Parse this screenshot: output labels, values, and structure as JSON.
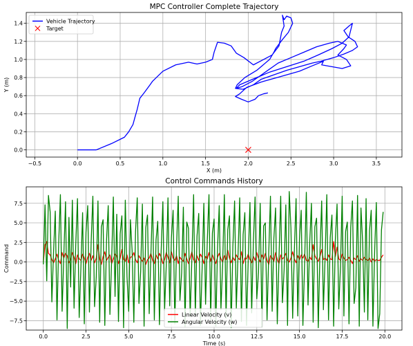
{
  "chart_data": [
    {
      "type": "line",
      "title": "MPC Controller Complete Trajectory",
      "xlabel": "X (m)",
      "ylabel": "Y (m)",
      "xlim": [
        -0.6,
        3.8
      ],
      "ylim": [
        -0.08,
        1.52
      ],
      "xticks": [
        -0.5,
        0.0,
        0.5,
        1.0,
        1.5,
        2.0,
        2.5,
        3.0,
        3.5
      ],
      "yticks": [
        0.0,
        0.2,
        0.4,
        0.6,
        0.8,
        1.0,
        1.2,
        1.4
      ],
      "xtick_labels": [
        "−0.5",
        "0.0",
        "0.5",
        "1.0",
        "1.5",
        "2.0",
        "2.5",
        "3.0",
        "3.5"
      ],
      "ytick_labels": [
        "0.0",
        "0.2",
        "0.4",
        "0.6",
        "0.8",
        "1.0",
        "1.2",
        "1.4"
      ],
      "grid": true,
      "legend_position": "top-left",
      "series": [
        {
          "name": "Vehicle Trajectory",
          "color": "#0000ff",
          "marker": "line",
          "points": [
            [
              0.0,
              0.0
            ],
            [
              0.22,
              0.0
            ],
            [
              0.4,
              0.07
            ],
            [
              0.55,
              0.14
            ],
            [
              0.6,
              0.2
            ],
            [
              0.65,
              0.28
            ],
            [
              0.67,
              0.35
            ],
            [
              0.7,
              0.45
            ],
            [
              0.73,
              0.57
            ],
            [
              0.78,
              0.63
            ],
            [
              0.85,
              0.72
            ],
            [
              0.88,
              0.76
            ],
            [
              1.0,
              0.87
            ],
            [
              1.15,
              0.94
            ],
            [
              1.3,
              0.97
            ],
            [
              1.4,
              0.95
            ],
            [
              1.5,
              0.97
            ],
            [
              1.58,
              1.0
            ],
            [
              1.6,
              1.08
            ],
            [
              1.64,
              1.19
            ],
            [
              1.72,
              1.18
            ],
            [
              1.8,
              1.15
            ],
            [
              1.86,
              1.07
            ],
            [
              1.95,
              1.02
            ],
            [
              2.06,
              0.94
            ],
            [
              2.18,
              1.0
            ],
            [
              2.28,
              1.05
            ],
            [
              2.32,
              1.1
            ],
            [
              2.36,
              1.15
            ],
            [
              2.39,
              1.3
            ],
            [
              2.42,
              1.37
            ],
            [
              2.4,
              1.49
            ],
            [
              2.42,
              1.44
            ],
            [
              2.45,
              1.48
            ],
            [
              2.5,
              1.46
            ],
            [
              2.52,
              1.4
            ],
            [
              2.47,
              1.3
            ],
            [
              2.4,
              1.22
            ],
            [
              2.32,
              1.12
            ],
            [
              2.3,
              1.08
            ],
            [
              2.25,
              1.0
            ],
            [
              2.1,
              0.88
            ],
            [
              1.96,
              0.8
            ],
            [
              1.87,
              0.72
            ],
            [
              1.85,
              0.68
            ],
            [
              1.94,
              0.67
            ],
            [
              2.06,
              0.72
            ],
            [
              2.15,
              0.78
            ],
            [
              2.3,
              0.83
            ],
            [
              2.45,
              0.88
            ],
            [
              2.6,
              0.92
            ],
            [
              2.75,
              0.96
            ],
            [
              2.85,
              0.98
            ],
            [
              3.0,
              1.02
            ],
            [
              3.12,
              1.06
            ],
            [
              3.22,
              1.1
            ],
            [
              3.28,
              1.14
            ],
            [
              3.25,
              1.2
            ],
            [
              3.17,
              1.25
            ],
            [
              3.12,
              1.32
            ],
            [
              3.18,
              1.37
            ],
            [
              3.22,
              1.4
            ],
            [
              3.18,
              1.25
            ],
            [
              3.1,
              1.18
            ],
            [
              2.98,
              1.12
            ],
            [
              2.82,
              1.05
            ],
            [
              2.65,
              0.98
            ],
            [
              2.45,
              0.92
            ],
            [
              2.25,
              0.86
            ],
            [
              2.05,
              0.78
            ],
            [
              1.9,
              0.72
            ],
            [
              1.86,
              0.68
            ],
            [
              1.93,
              0.7
            ],
            [
              2.05,
              0.76
            ],
            [
              2.2,
              0.86
            ],
            [
              2.35,
              0.96
            ],
            [
              2.5,
              1.02
            ],
            [
              2.65,
              1.08
            ],
            [
              2.8,
              1.14
            ],
            [
              2.95,
              1.18
            ],
            [
              3.05,
              1.2
            ],
            [
              3.15,
              1.16
            ],
            [
              3.12,
              1.12
            ],
            [
              3.05,
              1.05
            ],
            [
              3.15,
              1.0
            ],
            [
              3.2,
              0.93
            ],
            [
              3.1,
              0.9
            ],
            [
              2.98,
              0.92
            ],
            [
              2.86,
              0.94
            ],
            [
              2.88,
              0.98
            ],
            [
              2.75,
              0.93
            ],
            [
              2.6,
              0.87
            ],
            [
              2.45,
              0.83
            ],
            [
              2.3,
              0.79
            ],
            [
              2.15,
              0.75
            ],
            [
              1.98,
              0.69
            ],
            [
              1.9,
              0.62
            ],
            [
              1.85,
              0.59
            ],
            [
              1.92,
              0.56
            ],
            [
              2.0,
              0.53
            ],
            [
              2.08,
              0.56
            ],
            [
              2.12,
              0.6
            ],
            [
              2.18,
              0.62
            ],
            [
              2.23,
              0.63
            ]
          ]
        },
        {
          "name": "Target",
          "color": "#ff0000",
          "marker": "x",
          "points": [
            [
              2.0,
              0.0
            ]
          ]
        }
      ]
    },
    {
      "type": "line",
      "title": "Control Commands History",
      "xlabel": "Time (s)",
      "ylabel": "Command",
      "xlim": [
        -1.0,
        21.0
      ],
      "ylim": [
        -8.7,
        9.6
      ],
      "xticks": [
        0.0,
        2.5,
        5.0,
        7.5,
        10.0,
        12.5,
        15.0,
        17.5,
        20.0
      ],
      "yticks": [
        -7.5,
        -5.0,
        -2.5,
        0.0,
        2.5,
        5.0,
        7.5
      ],
      "xtick_labels": [
        "0.0",
        "2.5",
        "5.0",
        "7.5",
        "10.0",
        "12.5",
        "15.0",
        "17.5",
        "20.0"
      ],
      "ytick_labels": [
        "−7.5",
        "−5.0",
        "−2.5",
        "0.0",
        "2.5",
        "5.0",
        "7.5"
      ],
      "grid": true,
      "legend_position": "bottom-center",
      "x_start": 0.0,
      "x_step": 0.1,
      "series": [
        {
          "name": "Linear Velocity (v)",
          "color": "#ff0000",
          "values": [
            0.0,
            2.2,
            2.6,
            1.1,
            0.9,
            0.3,
            -0.1,
            0.4,
            1.0,
            0.2,
            -0.2,
            1.2,
            0.5,
            1.1,
            0.8,
            -0.1,
            0.3,
            1.2,
            0.6,
            -0.2,
            0.9,
            0.4,
            0.2,
            1.0,
            0.5,
            -0.2,
            0.6,
            1.1,
            0.2,
            0.8,
            -0.1,
            0.5,
            2.2,
            0.4,
            -0.3,
            0.7,
            1.3,
            0.2,
            0.6,
            0.9,
            -0.2,
            0.4,
            1.0,
            0.8,
            -0.2,
            0.5,
            1.6,
            0.3,
            0.1,
            0.9,
            -0.1,
            0.6,
            0.7,
            1.2,
            0.3,
            -0.1,
            0.8,
            0.4,
            0.1,
            0.5,
            -0.3,
            0.3,
            0.5,
            1.1,
            0.2,
            -0.2,
            0.9,
            0.4,
            1.1,
            0.6,
            -0.2,
            0.3,
            1.2,
            0.6,
            -0.1,
            1.3,
            0.5,
            0.2,
            0.8,
            -0.2,
            0.6,
            0.3,
            0.1,
            1.1,
            0.4,
            -0.2,
            0.5,
            1.3,
            0.3,
            -0.1,
            0.8,
            0.2,
            1.0,
            0.6,
            -0.2,
            0.7,
            0.4,
            1.2,
            0.1,
            0.9,
            0.3,
            -0.2,
            0.6,
            1.1,
            0.4,
            0.0,
            0.8,
            0.3,
            1.5,
            0.5,
            -0.1,
            0.6,
            0.2,
            0.9,
            0.5,
            0.3,
            1.3,
            -0.2,
            0.5,
            0.4,
            1.0,
            0.3,
            -0.1,
            0.7,
            0.2,
            1.2,
            0.5,
            0.0,
            0.9,
            0.4,
            1.1,
            0.2,
            -0.3,
            0.8,
            0.5,
            0.1,
            1.2,
            0.3,
            -0.2,
            0.9,
            0.4,
            0.6,
            1.1,
            0.2,
            0.0,
            0.5,
            1.3,
            0.4,
            -0.1,
            0.8,
            0.3,
            0.9,
            0.5,
            1.0,
            0.2,
            0.1,
            0.6,
            0.3,
            2.2,
            0.8,
            0.4,
            0.1,
            0.7,
            1.6,
            0.3,
            0.5,
            0.2,
            0.9,
            0.4,
            0.3,
            2.6,
            0.7,
            1.9,
            0.4,
            0.2,
            1.0,
            0.5,
            0.2,
            0.3,
            0.6,
            0.2,
            -0.2,
            0.5,
            0.3,
            0.8,
            0.1,
            0.4,
            0.2,
            0.6,
            0.3,
            0.2,
            0.5,
            0.0,
            0.4,
            0.1,
            0.3,
            0.2,
            0.2,
            0.6,
            0.9
          ]
        },
        {
          "name": "Angular Velocity (w)",
          "color": "#008000",
          "values": [
            -0.3,
            7.3,
            -2.4,
            8.5,
            6.4,
            -5.1,
            1.3,
            6.5,
            -7.4,
            2.4,
            8.6,
            -6.3,
            0.8,
            7.7,
            -8.5,
            5.7,
            -3.2,
            7.9,
            -5.9,
            2.3,
            8.1,
            -7.1,
            -0.8,
            6.3,
            -7.9,
            3.8,
            7.2,
            -6.4,
            2.5,
            8.4,
            -5.7,
            -1.9,
            7.8,
            -7.7,
            4.5,
            5.4,
            -8.1,
            2.7,
            7.2,
            -6.7,
            0.2,
            8.3,
            -4.4,
            6.1,
            -7.6,
            3.6,
            5.9,
            -8.4,
            7.9,
            -1.9,
            -6.3,
            5.4,
            1.4,
            -7.7,
            3.9,
            8.2,
            -5.3,
            -1.2,
            7.4,
            -8.2,
            4.4,
            6.0,
            -6.6,
            0.9,
            8.3,
            -7.4,
            2.8,
            5.2,
            -8.0,
            1.4,
            7.7,
            -6.2,
            -0.3,
            8.2,
            -5.6,
            3.1,
            6.6,
            -7.9,
            1.8,
            8.4,
            -4.9,
            -1.4,
            7.0,
            -8.3,
            5.1,
            4.3,
            -7.0,
            0.6,
            8.6,
            -6.8,
            3.3,
            6.2,
            -8.1,
            -0.7,
            7.5,
            -5.4,
            2.6,
            8.6,
            -7.4,
            3.7,
            5.5,
            -8.2,
            1.7,
            7.2,
            -6.1,
            -0.4,
            8.6,
            -7.2,
            4.1,
            5.9,
            -8.4,
            2.0,
            7.8,
            -5.9,
            0.8,
            8.2,
            -7.6,
            3.5,
            6.3,
            -8.1,
            0.4,
            7.6,
            -6.5,
            2.6,
            8.3,
            -4.7,
            -1.3,
            7.5,
            -8.3,
            4.6,
            5.0,
            -7.4,
            1.1,
            8.4,
            -6.3,
            3.0,
            6.9,
            -7.9,
            0.5,
            8.4,
            -5.2,
            -1.0,
            7.3,
            -8.1,
            9.0,
            4.3,
            -7.2,
            1.5,
            8.1,
            -6.9,
            2.9,
            6.6,
            -8.1,
            -0.2,
            8.9,
            -5.5,
            2.5,
            7.5,
            -7.7,
            4.5,
            5.6,
            -8.4,
            1.3,
            7.8,
            -6.1,
            0.6,
            8.6,
            -7.4,
            3.1,
            6.0,
            -8.2,
            2.8,
            7.4,
            -6.0,
            -0.6,
            8.4,
            -6.9,
            3.9,
            5.1,
            -7.9,
            4.4,
            7.8,
            -5.3,
            -3.3,
            8.5,
            -8.2,
            6.9,
            2.5,
            -6.4,
            8.1,
            -7.4,
            4.0,
            6.6,
            -8.2,
            1.3,
            7.6,
            -8.5,
            -6.6,
            4.1,
            6.4
          ]
        }
      ]
    }
  ]
}
